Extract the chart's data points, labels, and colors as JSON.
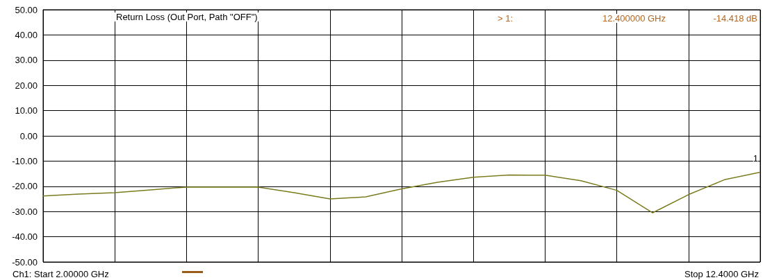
{
  "chart_data": {
    "type": "line",
    "title": "Return Loss (Out Port, Path \"OFF\")",
    "categories": [
      null,
      null,
      null,
      null,
      null,
      null,
      null,
      null,
      null,
      null,
      null,
      null,
      null,
      null,
      null,
      null,
      null,
      null,
      null,
      null,
      null
    ],
    "values": [
      -23.8,
      -23.1,
      -22.5,
      -21.4,
      -20.3,
      -20.3,
      -20.3,
      -22.5,
      -25,
      -24.2,
      -21,
      -18.4,
      -16.4,
      -15.5,
      -15.6,
      -17.8,
      -21.6,
      -30.5,
      -23.3,
      -17.4,
      -14.4
    ],
    "color": "#7a7a1e",
    "ylim": [
      -50,
      50
    ],
    "yticks": [
      {
        "value": -50,
        "label": "-50.00"
      },
      {
        "value": -40,
        "label": "-40.00"
      },
      {
        "value": -30,
        "label": "-30.00"
      },
      {
        "value": -20,
        "label": "-20.00"
      },
      {
        "value": -10,
        "label": "-10.00"
      },
      {
        "value": 0,
        "label": "0.00"
      },
      {
        "value": 10,
        "label": "10.00"
      },
      {
        "value": 20,
        "label": "20.00"
      },
      {
        "value": 30,
        "label": "30.00"
      },
      {
        "value": 40,
        "label": "40.00"
      },
      {
        "value": 50,
        "label": "50.00"
      }
    ],
    "tick_labels": "y",
    "grid": true,
    "marker": "none",
    "annotations": [
      "> 1:",
      "12.400000 GHz",
      "-14.418 dB",
      "Ch1: Start 2.00000 GHz",
      "Stop 12.4000 GHz",
      "1"
    ]
  }
}
